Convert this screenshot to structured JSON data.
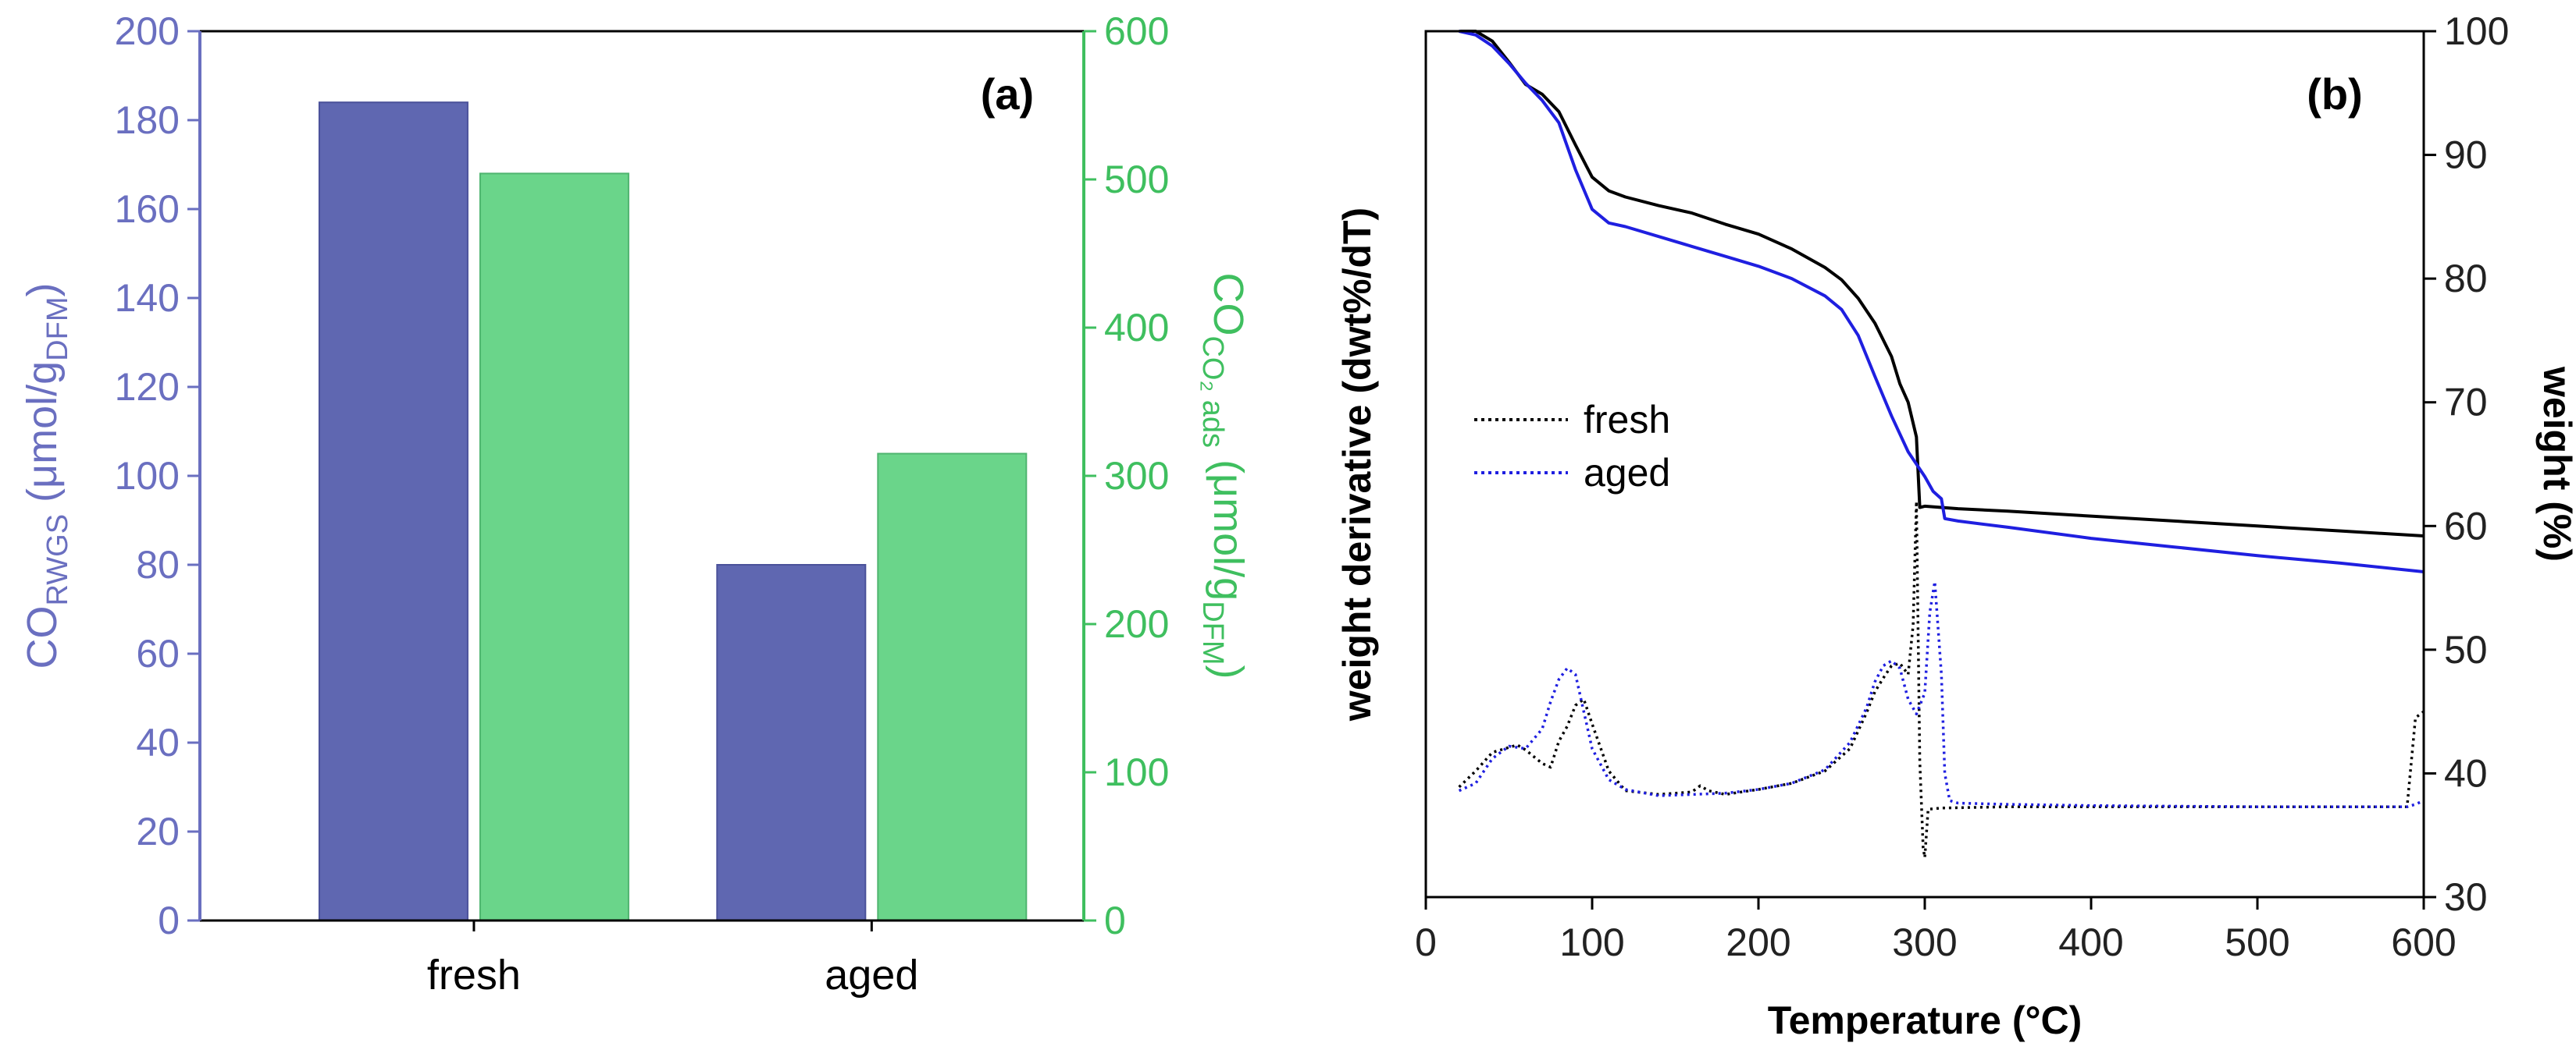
{
  "chart_data": [
    {
      "panel": "(a)",
      "type": "bar",
      "categories": [
        "fresh",
        "aged"
      ],
      "series": [
        {
          "name": "CO_RWGS",
          "axis": "left",
          "color": "#5f67b1",
          "values": [
            184,
            80
          ]
        },
        {
          "name": "CO_CO2 ads",
          "axis": "right",
          "color": "#6ad58a",
          "values": [
            504,
            315
          ]
        }
      ],
      "ylabel_left": {
        "main": "CO",
        "sub": "RWGS",
        "unit_pre": " (μmol/g",
        "unit_sub": "DFM",
        "unit_post": ")"
      },
      "ylabel_right": {
        "main": "CO",
        "sub": "CO₂ ads",
        "unit_pre": " (μmol/g",
        "unit_sub": "DFM",
        "unit_post": ")"
      },
      "ylim_left": [
        0,
        200
      ],
      "yticks_left": [
        "0",
        "20",
        "40",
        "60",
        "80",
        "100",
        "120",
        "140",
        "160",
        "180",
        "200"
      ],
      "ylim_right": [
        0,
        600
      ],
      "yticks_right": [
        "0",
        "100",
        "200",
        "300",
        "400",
        "500",
        "600"
      ]
    },
    {
      "panel": "(b)",
      "type": "line",
      "xlabel": "Temperature (°C)",
      "ylabel_left": "weight derivative (dwt%/dT)",
      "ylabel_right": "weight (%)",
      "xlim": [
        0,
        600
      ],
      "xticks": [
        "0",
        "100",
        "200",
        "300",
        "400",
        "500",
        "600"
      ],
      "ylim_right": [
        30,
        100
      ],
      "yticks_right": [
        "30",
        "40",
        "50",
        "60",
        "70",
        "80",
        "90",
        "100"
      ],
      "legend": [
        {
          "label": "fresh",
          "color": "#000000"
        },
        {
          "label": "aged",
          "color": "#1f1fe0"
        }
      ],
      "series": [
        {
          "name": "fresh weight",
          "color": "#000000",
          "style": "solid",
          "x": [
            20,
            30,
            40,
            50,
            60,
            70,
            80,
            90,
            100,
            110,
            120,
            140,
            160,
            180,
            200,
            220,
            240,
            250,
            260,
            270,
            280,
            285,
            290,
            295,
            297,
            300,
            320,
            350,
            400,
            450,
            500,
            550,
            600
          ],
          "y": [
            100,
            100,
            99.2,
            97.5,
            95.7,
            94.9,
            93.5,
            90.8,
            88.2,
            87.1,
            86.6,
            85.9,
            85.3,
            84.4,
            83.6,
            82.4,
            80.9,
            79.9,
            78.4,
            76.4,
            73.7,
            71.5,
            70.0,
            67.2,
            61.5,
            61.6,
            61.4,
            61.2,
            60.8,
            60.4,
            60.0,
            59.6,
            59.2
          ]
        },
        {
          "name": "aged weight",
          "color": "#1f1fe0",
          "style": "solid",
          "x": [
            20,
            30,
            40,
            50,
            60,
            70,
            80,
            90,
            100,
            110,
            120,
            140,
            160,
            180,
            200,
            220,
            240,
            250,
            260,
            270,
            280,
            290,
            300,
            305,
            310,
            312,
            320,
            350,
            400,
            450,
            500,
            550,
            600
          ],
          "y": [
            100,
            99.7,
            98.8,
            97.4,
            95.8,
            94.4,
            92.6,
            88.8,
            85.6,
            84.5,
            84.2,
            83.4,
            82.6,
            81.8,
            81.0,
            80.0,
            78.6,
            77.5,
            75.4,
            72.1,
            68.9,
            66.0,
            64.0,
            62.8,
            62.2,
            60.6,
            60.4,
            59.9,
            59.0,
            58.3,
            57.6,
            57.0,
            56.3
          ]
        },
        {
          "name": "fresh derivative",
          "color": "#000000",
          "style": "dotted",
          "x": [
            20,
            30,
            40,
            50,
            55,
            60,
            70,
            75,
            80,
            85,
            90,
            95,
            100,
            110,
            120,
            140,
            160,
            165,
            170,
            180,
            200,
            220,
            240,
            255,
            265,
            270,
            275,
            280,
            285,
            290,
            293,
            295,
            297,
            299,
            300,
            302,
            310,
            350,
            400,
            500,
            590,
            595,
            600
          ],
          "y": [
            38.9,
            40.2,
            41.7,
            42.1,
            42.3,
            41.9,
            40.8,
            40.5,
            42.6,
            43.8,
            45.5,
            46.0,
            44.0,
            40.2,
            38.6,
            38.3,
            38.5,
            39.0,
            38.6,
            38.3,
            38.7,
            39.2,
            40.2,
            42.0,
            44.9,
            46.6,
            47.7,
            48.7,
            48.9,
            48.0,
            52.0,
            62.0,
            41.0,
            34.0,
            33.2,
            37.1,
            37.2,
            37.3,
            37.3,
            37.3,
            37.3,
            44.5,
            45.0
          ]
        },
        {
          "name": "aged derivative",
          "color": "#1f1fe0",
          "style": "dotted",
          "x": [
            20,
            30,
            40,
            50,
            60,
            70,
            75,
            80,
            85,
            90,
            95,
            100,
            110,
            120,
            140,
            160,
            180,
            200,
            220,
            240,
            255,
            265,
            270,
            275,
            280,
            285,
            290,
            295,
            300,
            303,
            306,
            310,
            312,
            315,
            320,
            350,
            400,
            500,
            590,
            595,
            600
          ],
          "y": [
            38.6,
            39.2,
            41.2,
            42.2,
            42.0,
            43.6,
            45.8,
            47.6,
            48.5,
            48.0,
            45.0,
            42.0,
            39.5,
            38.7,
            38.2,
            38.3,
            38.4,
            38.7,
            39.2,
            40.3,
            42.5,
            45.3,
            47.4,
            48.7,
            49.1,
            48.5,
            46.0,
            44.8,
            46.5,
            53.0,
            55.5,
            48.0,
            40.0,
            37.8,
            37.6,
            37.5,
            37.4,
            37.3,
            37.3,
            37.5,
            37.8
          ]
        }
      ]
    }
  ]
}
